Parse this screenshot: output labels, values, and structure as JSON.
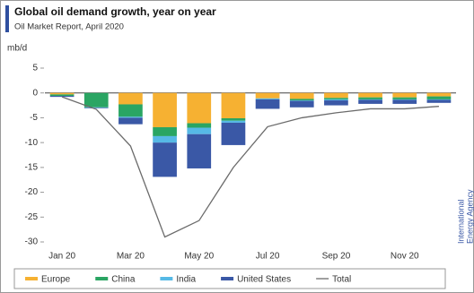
{
  "chart_data": {
    "type": "stacked_bar_line",
    "title": "Global oil demand growth, year on year",
    "subtitle": "Oil Market Report, April 2020",
    "y_axis_label": "mb/d",
    "watermark": [
      "International",
      "Energy Agency"
    ],
    "categories": [
      "Jan 20",
      null,
      "Mar 20",
      null,
      "May 20",
      null,
      "Jul 20",
      null,
      "Sep 20",
      null,
      "Nov 20",
      null
    ],
    "series": [
      {
        "name": "Europe",
        "color": "#f6b132",
        "values": [
          -0.3,
          0,
          -2.3,
          -6.9,
          -6.1,
          -5.1,
          -1.1,
          -1.2,
          -1.0,
          -0.9,
          -0.9,
          -0.7
        ]
      },
      {
        "name": "China",
        "color": "#2aa563",
        "values": [
          -0.3,
          -2.9,
          -2.5,
          -1.8,
          -0.9,
          -0.5,
          0,
          -0.3,
          -0.3,
          -0.4,
          -0.4,
          -0.6
        ]
      },
      {
        "name": "India",
        "color": "#56b9e6",
        "values": [
          0,
          -0.1,
          -0.2,
          -1.3,
          -1.3,
          -0.4,
          -0.2,
          -0.1,
          -0.2,
          -0.1,
          -0.1,
          -0.1
        ]
      },
      {
        "name": "United States",
        "color": "#3a58a6",
        "values": [
          -0.2,
          -0.1,
          -1.3,
          -6.9,
          -6.9,
          -4.5,
          -1.9,
          -1.3,
          -1.0,
          -0.8,
          -0.8,
          -0.6
        ]
      }
    ],
    "line": {
      "name": "Total",
      "color": "#6b6b6b",
      "values": [
        -0.8,
        -3.3,
        -10.7,
        -29,
        -25.7,
        -15,
        -6.8,
        -5,
        -4,
        -3.2,
        -3.2,
        -2.7
      ]
    },
    "ylim": [
      -30,
      5
    ],
    "yticks": [
      5,
      0,
      -5,
      -10,
      -15,
      -20,
      -25,
      -30
    ],
    "legend": "bottom"
  }
}
